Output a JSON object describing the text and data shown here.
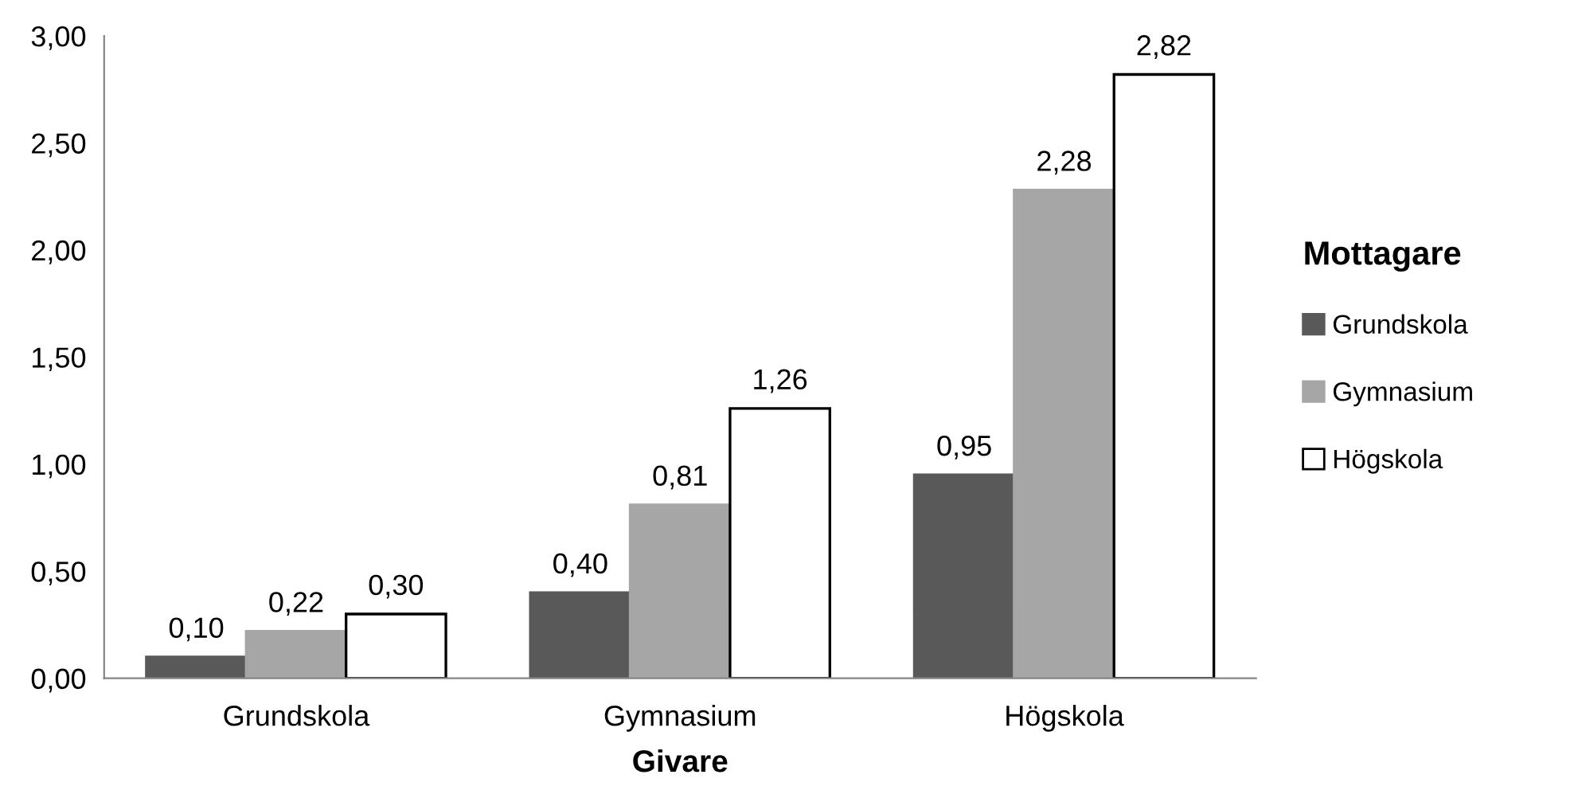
{
  "chart_data": {
    "type": "bar",
    "xlabel": "Givare",
    "legend_title": "Mottagare",
    "legend": "right",
    "categories": [
      "Grundskola",
      "Gymnasium",
      "Högskola"
    ],
    "series": [
      {
        "name": "Grundskola",
        "color": "#595959",
        "values": [
          0.1,
          0.4,
          0.95
        ],
        "value_labels": [
          "0,10",
          "0,40",
          "0,95"
        ]
      },
      {
        "name": "Gymnasium",
        "color": "#a6a6a6",
        "values": [
          0.22,
          0.81,
          2.28
        ],
        "value_labels": [
          "0,22",
          "0,81",
          "2,28"
        ]
      },
      {
        "name": "Högskola",
        "color": "#ffffff",
        "values": [
          0.3,
          1.26,
          2.82
        ],
        "value_labels": [
          "0,30",
          "1,26",
          "2,82"
        ]
      }
    ],
    "ylim": [
      0,
      3
    ],
    "yticks": [
      {
        "value": 0,
        "label": "0,00"
      },
      {
        "value": 0.5,
        "label": "0,50"
      },
      {
        "value": 1,
        "label": "1,00"
      },
      {
        "value": 1.5,
        "label": "1,50"
      },
      {
        "value": 2,
        "label": "2,00"
      },
      {
        "value": 2.5,
        "label": "2,50"
      },
      {
        "value": 3,
        "label": "3,00"
      }
    ],
    "grid": false
  }
}
